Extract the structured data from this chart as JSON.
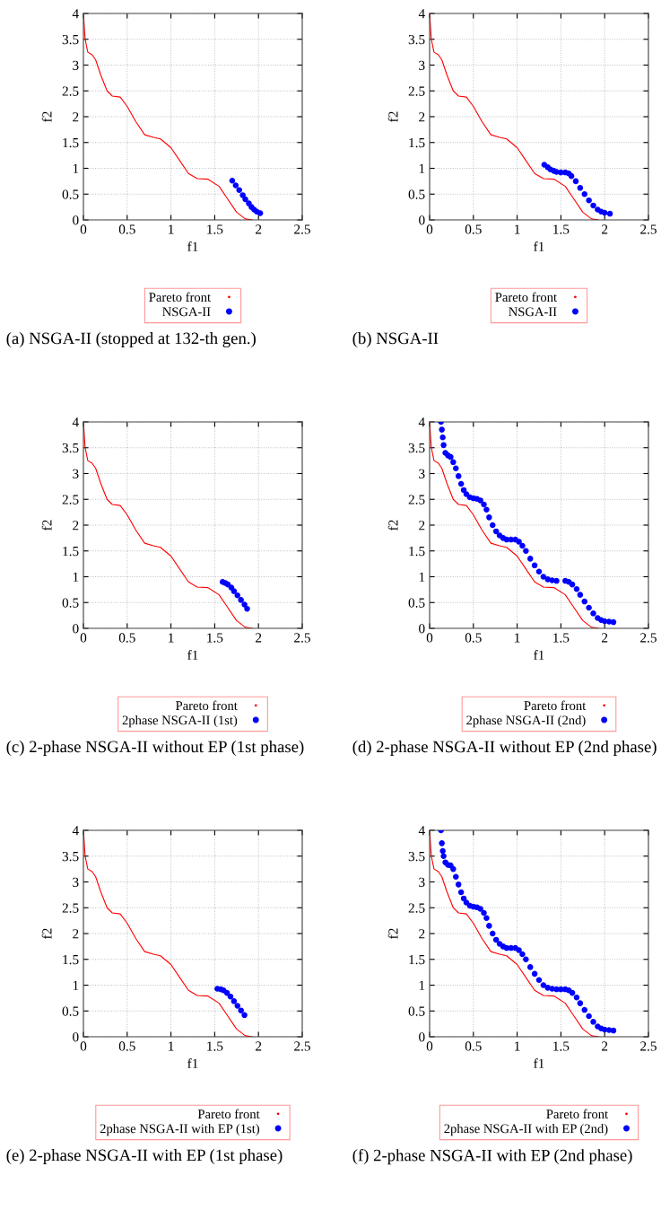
{
  "chart_data": [
    {
      "type": "scatter",
      "xlabel": "f1",
      "ylabel": "f2",
      "xlim": [
        0,
        2.5
      ],
      "ylim": [
        0,
        4
      ],
      "xticks": [
        0,
        0.5,
        1,
        1.5,
        2,
        2.5
      ],
      "yticks": [
        0,
        0.5,
        1,
        1.5,
        2,
        2.5,
        3,
        3.5,
        4
      ],
      "grid": true,
      "legend": "bottom",
      "annotations": [
        "(a) NSGA-II (stopped at 132-th gen.)"
      ],
      "series": [
        {
          "name": "Pareto front",
          "type": "line",
          "color": "#ff0000",
          "x": [
            0,
            0.02,
            0.05,
            0.1,
            0.14,
            0.2,
            0.27,
            0.33,
            0.42,
            0.5,
            0.6,
            0.7,
            0.8,
            0.88,
            1.0,
            1.1,
            1.2,
            1.3,
            1.42,
            1.55,
            1.65,
            1.75,
            1.85,
            1.93
          ],
          "values": [
            4,
            3.5,
            3.25,
            3.2,
            3.1,
            2.8,
            2.5,
            2.4,
            2.38,
            2.2,
            1.9,
            1.65,
            1.6,
            1.57,
            1.4,
            1.15,
            0.9,
            0.8,
            0.79,
            0.65,
            0.4,
            0.15,
            0.02,
            0
          ]
        },
        {
          "name": "NSGA-II",
          "color": "#0000ff",
          "x": [
            1.7,
            1.74,
            1.78,
            1.82,
            1.85,
            1.89,
            1.92,
            1.95,
            1.98,
            2.02
          ],
          "values": [
            0.76,
            0.67,
            0.58,
            0.48,
            0.4,
            0.32,
            0.25,
            0.2,
            0.16,
            0.13
          ]
        }
      ]
    },
    {
      "type": "scatter",
      "xlabel": "f1",
      "ylabel": "f2",
      "xlim": [
        0,
        2.5
      ],
      "ylim": [
        0,
        4
      ],
      "xticks": [
        0,
        0.5,
        1,
        1.5,
        2,
        2.5
      ],
      "yticks": [
        0,
        0.5,
        1,
        1.5,
        2,
        2.5,
        3,
        3.5,
        4
      ],
      "grid": true,
      "legend": "bottom",
      "annotations": [
        "(b) NSGA-II"
      ],
      "series": [
        {
          "name": "Pareto front",
          "type": "line",
          "color": "#ff0000",
          "x": [
            0,
            0.02,
            0.05,
            0.1,
            0.14,
            0.2,
            0.27,
            0.33,
            0.42,
            0.5,
            0.6,
            0.7,
            0.8,
            0.88,
            1.0,
            1.1,
            1.2,
            1.3,
            1.42,
            1.55,
            1.65,
            1.75,
            1.85,
            1.93
          ],
          "values": [
            4,
            3.5,
            3.25,
            3.2,
            3.1,
            2.8,
            2.5,
            2.4,
            2.38,
            2.2,
            1.9,
            1.65,
            1.6,
            1.57,
            1.4,
            1.15,
            0.9,
            0.8,
            0.79,
            0.65,
            0.4,
            0.15,
            0.02,
            0
          ]
        },
        {
          "name": "NSGA-II",
          "color": "#0000ff",
          "x": [
            1.31,
            1.35,
            1.38,
            1.42,
            1.45,
            1.5,
            1.55,
            1.59,
            1.62,
            1.67,
            1.72,
            1.77,
            1.82,
            1.87,
            1.92,
            1.96,
            2.0,
            2.06
          ],
          "values": [
            1.07,
            1.02,
            0.98,
            0.95,
            0.93,
            0.92,
            0.92,
            0.9,
            0.85,
            0.75,
            0.62,
            0.5,
            0.38,
            0.28,
            0.2,
            0.16,
            0.14,
            0.12
          ]
        }
      ]
    },
    {
      "type": "scatter",
      "xlabel": "f1",
      "ylabel": "f2",
      "xlim": [
        0,
        2.5
      ],
      "ylim": [
        0,
        4
      ],
      "xticks": [
        0,
        0.5,
        1,
        1.5,
        2,
        2.5
      ],
      "yticks": [
        0,
        0.5,
        1,
        1.5,
        2,
        2.5,
        3,
        3.5,
        4
      ],
      "grid": true,
      "legend": "bottom",
      "annotations": [
        "(c) 2-phase NSGA-II without EP (1st phase)"
      ],
      "series": [
        {
          "name": "Pareto front",
          "type": "line",
          "color": "#ff0000",
          "x": [
            0,
            0.02,
            0.05,
            0.1,
            0.14,
            0.2,
            0.27,
            0.33,
            0.42,
            0.5,
            0.6,
            0.7,
            0.8,
            0.88,
            1.0,
            1.1,
            1.2,
            1.3,
            1.42,
            1.55,
            1.65,
            1.75,
            1.85,
            1.93
          ],
          "values": [
            4,
            3.5,
            3.25,
            3.2,
            3.1,
            2.8,
            2.5,
            2.4,
            2.38,
            2.2,
            1.9,
            1.65,
            1.6,
            1.57,
            1.4,
            1.15,
            0.9,
            0.8,
            0.79,
            0.65,
            0.4,
            0.15,
            0.02,
            0
          ]
        },
        {
          "name": "2phase NSGA-II (1st)",
          "color": "#0000ff",
          "x": [
            1.59,
            1.62,
            1.65,
            1.69,
            1.72,
            1.76,
            1.8,
            1.84,
            1.87
          ],
          "values": [
            0.9,
            0.88,
            0.85,
            0.79,
            0.72,
            0.64,
            0.55,
            0.46,
            0.38
          ]
        }
      ]
    },
    {
      "type": "scatter",
      "xlabel": "f1",
      "ylabel": "f2",
      "xlim": [
        0,
        2.5
      ],
      "ylim": [
        0,
        4
      ],
      "xticks": [
        0,
        0.5,
        1,
        1.5,
        2,
        2.5
      ],
      "yticks": [
        0,
        0.5,
        1,
        1.5,
        2,
        2.5,
        3,
        3.5,
        4
      ],
      "grid": true,
      "legend": "bottom",
      "annotations": [
        "(d) 2-phase NSGA-II without EP (2nd phase)"
      ],
      "series": [
        {
          "name": "Pareto front",
          "type": "line",
          "color": "#ff0000",
          "x": [
            0,
            0.02,
            0.05,
            0.1,
            0.14,
            0.2,
            0.27,
            0.33,
            0.42,
            0.5,
            0.6,
            0.7,
            0.8,
            0.88,
            1.0,
            1.1,
            1.2,
            1.3,
            1.42,
            1.55,
            1.65,
            1.75,
            1.85,
            1.93
          ],
          "values": [
            4,
            3.5,
            3.25,
            3.2,
            3.1,
            2.8,
            2.5,
            2.4,
            2.38,
            2.2,
            1.9,
            1.65,
            1.6,
            1.57,
            1.4,
            1.15,
            0.9,
            0.8,
            0.79,
            0.65,
            0.4,
            0.15,
            0.02,
            0
          ]
        },
        {
          "name": "2phase NSGA-II (2nd)",
          "color": "#0000ff",
          "x": [
            0.13,
            0.14,
            0.15,
            0.16,
            0.18,
            0.21,
            0.24,
            0.27,
            0.3,
            0.33,
            0.36,
            0.39,
            0.42,
            0.46,
            0.5,
            0.54,
            0.58,
            0.62,
            0.65,
            0.68,
            0.72,
            0.76,
            0.8,
            0.84,
            0.88,
            0.93,
            0.98,
            1.02,
            1.06,
            1.1,
            1.15,
            1.2,
            1.25,
            1.3,
            1.35,
            1.4,
            1.45,
            1.55,
            1.59,
            1.63,
            1.68,
            1.72,
            1.77,
            1.82,
            1.87,
            1.92,
            1.96,
            2.0,
            2.05,
            2.1
          ],
          "values": [
            4.0,
            3.85,
            3.7,
            3.55,
            3.4,
            3.35,
            3.32,
            3.22,
            3.1,
            2.95,
            2.8,
            2.68,
            2.6,
            2.54,
            2.52,
            2.51,
            2.48,
            2.4,
            2.3,
            2.15,
            2.0,
            1.88,
            1.8,
            1.75,
            1.72,
            1.72,
            1.72,
            1.68,
            1.6,
            1.5,
            1.35,
            1.22,
            1.1,
            1.0,
            0.95,
            0.93,
            0.92,
            0.92,
            0.9,
            0.85,
            0.76,
            0.65,
            0.52,
            0.4,
            0.29,
            0.2,
            0.16,
            0.14,
            0.13,
            0.12
          ]
        }
      ]
    },
    {
      "type": "scatter",
      "xlabel": "f1",
      "ylabel": "f2",
      "xlim": [
        0,
        2.5
      ],
      "ylim": [
        0,
        4
      ],
      "xticks": [
        0,
        0.5,
        1,
        1.5,
        2,
        2.5
      ],
      "yticks": [
        0,
        0.5,
        1,
        1.5,
        2,
        2.5,
        3,
        3.5,
        4
      ],
      "grid": true,
      "legend": "bottom",
      "annotations": [
        "(e) 2-phase NSGA-II with EP (1st phase)"
      ],
      "series": [
        {
          "name": "Pareto front",
          "type": "line",
          "color": "#ff0000",
          "x": [
            0,
            0.02,
            0.05,
            0.1,
            0.14,
            0.2,
            0.27,
            0.33,
            0.42,
            0.5,
            0.6,
            0.7,
            0.8,
            0.88,
            1.0,
            1.1,
            1.2,
            1.3,
            1.42,
            1.55,
            1.65,
            1.75,
            1.85,
            1.93
          ],
          "values": [
            4,
            3.5,
            3.25,
            3.2,
            3.1,
            2.8,
            2.5,
            2.4,
            2.38,
            2.2,
            1.9,
            1.65,
            1.6,
            1.57,
            1.4,
            1.15,
            0.9,
            0.8,
            0.79,
            0.65,
            0.4,
            0.15,
            0.02,
            0
          ]
        },
        {
          "name": "2phase NSGA-II with EP (1st)",
          "color": "#0000ff",
          "x": [
            1.53,
            1.57,
            1.6,
            1.64,
            1.68,
            1.72,
            1.76,
            1.8,
            1.84
          ],
          "values": [
            0.93,
            0.92,
            0.9,
            0.85,
            0.78,
            0.69,
            0.6,
            0.51,
            0.42
          ]
        }
      ]
    },
    {
      "type": "scatter",
      "xlabel": "f1",
      "ylabel": "f2",
      "xlim": [
        0,
        2.5
      ],
      "ylim": [
        0,
        4
      ],
      "xticks": [
        0,
        0.5,
        1,
        1.5,
        2,
        2.5
      ],
      "yticks": [
        0,
        0.5,
        1,
        1.5,
        2,
        2.5,
        3,
        3.5,
        4
      ],
      "grid": true,
      "legend": "bottom",
      "annotations": [
        "(f) 2-phase NSGA-II with EP (2nd phase)"
      ],
      "series": [
        {
          "name": "Pareto front",
          "type": "line",
          "color": "#ff0000",
          "x": [
            0,
            0.02,
            0.05,
            0.1,
            0.14,
            0.2,
            0.27,
            0.33,
            0.42,
            0.5,
            0.6,
            0.7,
            0.8,
            0.88,
            1.0,
            1.1,
            1.2,
            1.3,
            1.42,
            1.55,
            1.65,
            1.75,
            1.85,
            1.93
          ],
          "values": [
            4,
            3.5,
            3.25,
            3.2,
            3.1,
            2.8,
            2.5,
            2.4,
            2.38,
            2.2,
            1.9,
            1.65,
            1.6,
            1.57,
            1.4,
            1.15,
            0.9,
            0.8,
            0.79,
            0.65,
            0.4,
            0.15,
            0.02,
            0
          ]
        },
        {
          "name": "2phase NSGA-II with EP (2nd)",
          "color": "#0000ff",
          "x": [
            0.13,
            0.14,
            0.15,
            0.16,
            0.18,
            0.21,
            0.24,
            0.27,
            0.3,
            0.33,
            0.36,
            0.39,
            0.42,
            0.46,
            0.5,
            0.54,
            0.58,
            0.62,
            0.65,
            0.68,
            0.72,
            0.76,
            0.8,
            0.84,
            0.88,
            0.93,
            0.98,
            1.02,
            1.06,
            1.1,
            1.15,
            1.2,
            1.25,
            1.3,
            1.35,
            1.4,
            1.45,
            1.5,
            1.55,
            1.59,
            1.63,
            1.68,
            1.72,
            1.77,
            1.82,
            1.87,
            1.92,
            1.96,
            2.0,
            2.05,
            2.1
          ],
          "values": [
            4.0,
            3.75,
            3.6,
            3.5,
            3.38,
            3.33,
            3.32,
            3.25,
            3.1,
            2.95,
            2.8,
            2.68,
            2.6,
            2.54,
            2.52,
            2.51,
            2.48,
            2.4,
            2.3,
            2.15,
            2.0,
            1.88,
            1.8,
            1.75,
            1.72,
            1.72,
            1.72,
            1.68,
            1.6,
            1.5,
            1.35,
            1.22,
            1.1,
            1.0,
            0.95,
            0.93,
            0.92,
            0.92,
            0.92,
            0.9,
            0.85,
            0.76,
            0.65,
            0.52,
            0.4,
            0.29,
            0.2,
            0.16,
            0.14,
            0.13,
            0.12
          ]
        }
      ]
    }
  ]
}
